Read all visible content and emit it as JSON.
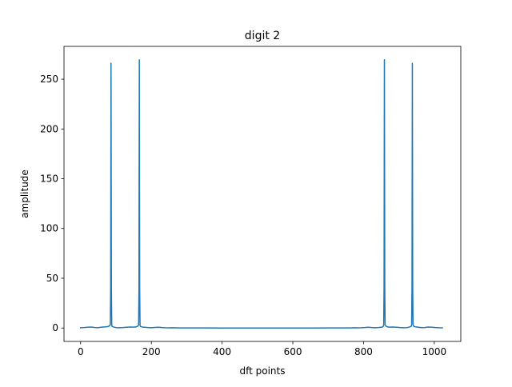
{
  "chart_data": {
    "type": "line",
    "title": "digit 2",
    "xlabel": "dft points",
    "ylabel": "amplitude",
    "xlim": [
      -47,
      1075
    ],
    "ylim": [
      -13.5,
      283
    ],
    "xticks": [
      0,
      200,
      400,
      600,
      800,
      1000
    ],
    "yticks": [
      0,
      50,
      100,
      150,
      200,
      250
    ],
    "grid": false,
    "legend": "none",
    "n_points": 1024,
    "series": [
      {
        "color": "#1f77b4",
        "x": [
          0,
          10,
          20,
          30,
          40,
          50,
          60,
          70,
          78,
          82,
          84,
          85,
          86,
          87,
          88,
          89,
          90,
          94,
          100,
          110,
          120,
          130,
          140,
          150,
          158,
          162,
          164,
          165,
          166,
          167,
          168,
          169,
          170,
          174,
          180,
          190,
          200,
          210,
          220,
          230,
          240,
          250,
          260,
          280,
          300,
          350,
          400,
          450,
          500,
          550,
          600,
          650,
          700,
          750,
          763,
          773,
          783,
          793,
          803,
          813,
          823,
          833,
          843,
          849,
          853,
          855,
          856,
          857,
          858,
          859,
          860,
          861,
          863,
          867,
          873,
          883,
          893,
          903,
          913,
          923,
          929,
          933,
          935,
          936,
          937,
          938,
          939,
          940,
          941,
          943,
          947,
          953,
          963,
          973,
          983,
          993,
          1003,
          1013,
          1023
        ],
        "y": [
          0.3,
          0.5,
          0.8,
          1.0,
          0.5,
          0.4,
          0.9,
          1.2,
          1.5,
          2.2,
          3.5,
          40,
          266,
          40,
          3.5,
          1.8,
          1.4,
          0.9,
          0.4,
          0.3,
          0.5,
          0.8,
          1.0,
          0.9,
          1.2,
          2.0,
          3.0,
          40,
          269.5,
          40,
          3.0,
          2.0,
          1.4,
          1.0,
          0.8,
          0.5,
          0.3,
          0.6,
          0.8,
          0.5,
          0.3,
          0.2,
          0.3,
          0.1,
          0.05,
          0.02,
          0.01,
          0.01,
          0.01,
          0.01,
          0.01,
          0.01,
          0.02,
          0.05,
          0.1,
          0.3,
          0.2,
          0.3,
          0.5,
          0.8,
          0.5,
          0.3,
          0.5,
          0.8,
          1.0,
          1.4,
          2.0,
          3.0,
          40,
          269.5,
          40,
          3.0,
          2.0,
          1.2,
          0.9,
          1.0,
          0.8,
          0.5,
          0.3,
          0.4,
          0.9,
          1.4,
          1.8,
          3.5,
          40,
          266,
          40,
          3.5,
          2.2,
          1.5,
          1.2,
          0.9,
          0.4,
          0.5,
          1.0,
          0.8,
          0.5,
          0.3,
          0.2
        ]
      }
    ]
  }
}
